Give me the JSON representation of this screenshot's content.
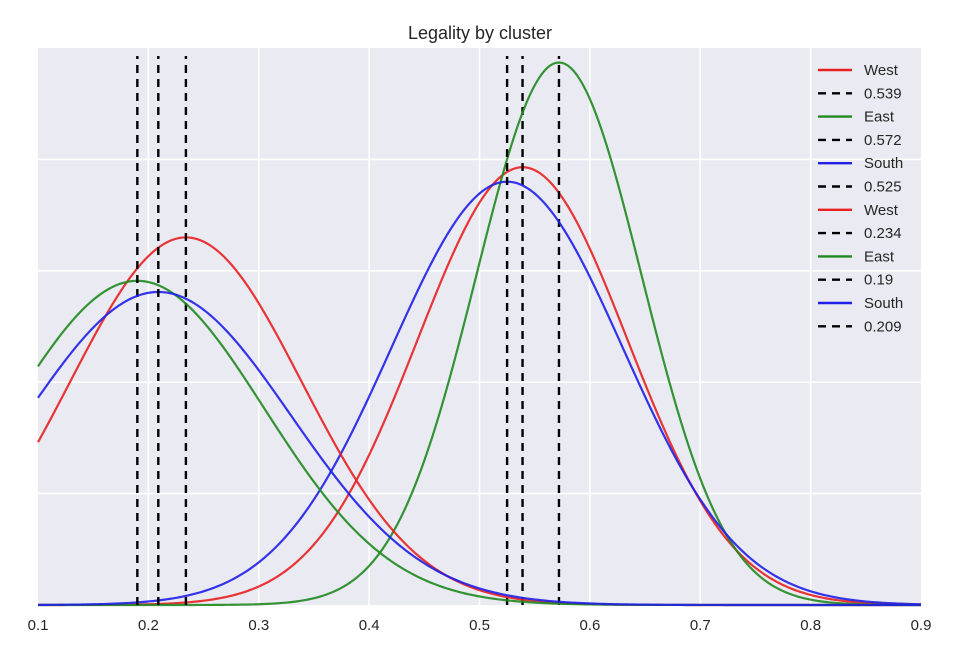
{
  "chart_data": {
    "type": "line",
    "title": "Legality by cluster",
    "xlabel": "",
    "ylabel": "",
    "xlim": [
      0.1,
      0.9
    ],
    "ylim": [
      0,
      5.0
    ],
    "grid": true,
    "legend_position": "top-right",
    "x_ticks": [
      "0.1",
      "0.2",
      "0.3",
      "0.4",
      "0.5",
      "0.6",
      "0.7",
      "0.8",
      "0.9"
    ],
    "y_grid_values": [
      1,
      2,
      3,
      4
    ],
    "series": [
      {
        "name": "West",
        "kind": "curve",
        "color": "#e8201f",
        "mean": 0.539,
        "std": 0.095,
        "peak": 3.93
      },
      {
        "name": "0.539",
        "kind": "vline",
        "color": "#000000",
        "x": 0.539
      },
      {
        "name": "East",
        "kind": "curve",
        "color": "#1f8a1f",
        "mean": 0.572,
        "std": 0.075,
        "peak": 4.87
      },
      {
        "name": "0.572",
        "kind": "vline",
        "color": "#000000",
        "x": 0.572
      },
      {
        "name": "South",
        "kind": "curve",
        "color": "#1f1fe8",
        "mean": 0.525,
        "std": 0.105,
        "peak": 3.8
      },
      {
        "name": "0.525",
        "kind": "vline",
        "color": "#000000",
        "x": 0.525
      },
      {
        "name": "West",
        "kind": "curve",
        "color": "#e8201f",
        "mean": 0.234,
        "std": 0.105,
        "peak": 3.3
      },
      {
        "name": "0.234",
        "kind": "vline",
        "color": "#000000",
        "x": 0.234
      },
      {
        "name": "East",
        "kind": "curve",
        "color": "#1f8a1f",
        "mean": 0.19,
        "std": 0.115,
        "peak": 2.91
      },
      {
        "name": "0.19",
        "kind": "vline",
        "color": "#000000",
        "x": 0.19
      },
      {
        "name": "South",
        "kind": "curve",
        "color": "#1f1fe8",
        "mean": 0.209,
        "std": 0.12,
        "peak": 2.81
      },
      {
        "name": "0.209",
        "kind": "vline",
        "color": "#000000",
        "x": 0.209
      }
    ]
  }
}
